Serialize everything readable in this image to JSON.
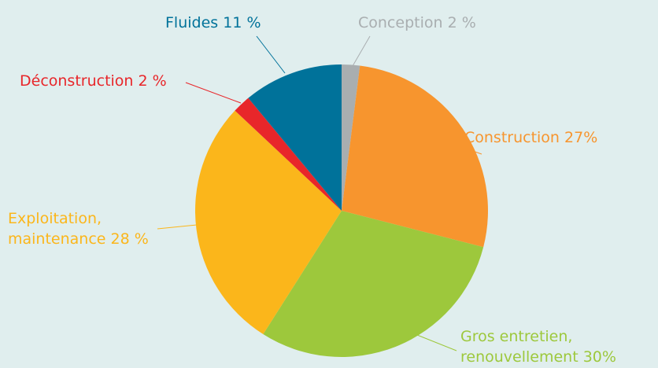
{
  "chart_data": {
    "type": "pie",
    "categories": [
      "Conception",
      "Construction",
      "Gros entretien, renouvellement",
      "Exploitation, maintenance",
      "Déconstruction",
      "Fluides"
    ],
    "values": [
      2,
      27,
      30,
      28,
      2,
      11
    ],
    "value_labels": [
      "2 %",
      "27%",
      "30%",
      "28 %",
      "2 %",
      "11 %"
    ],
    "colors": [
      "#a9aeb0",
      "#f7952e",
      "#9dc83c",
      "#fbb61b",
      "#e8262a",
      "#00729a"
    ]
  }
}
